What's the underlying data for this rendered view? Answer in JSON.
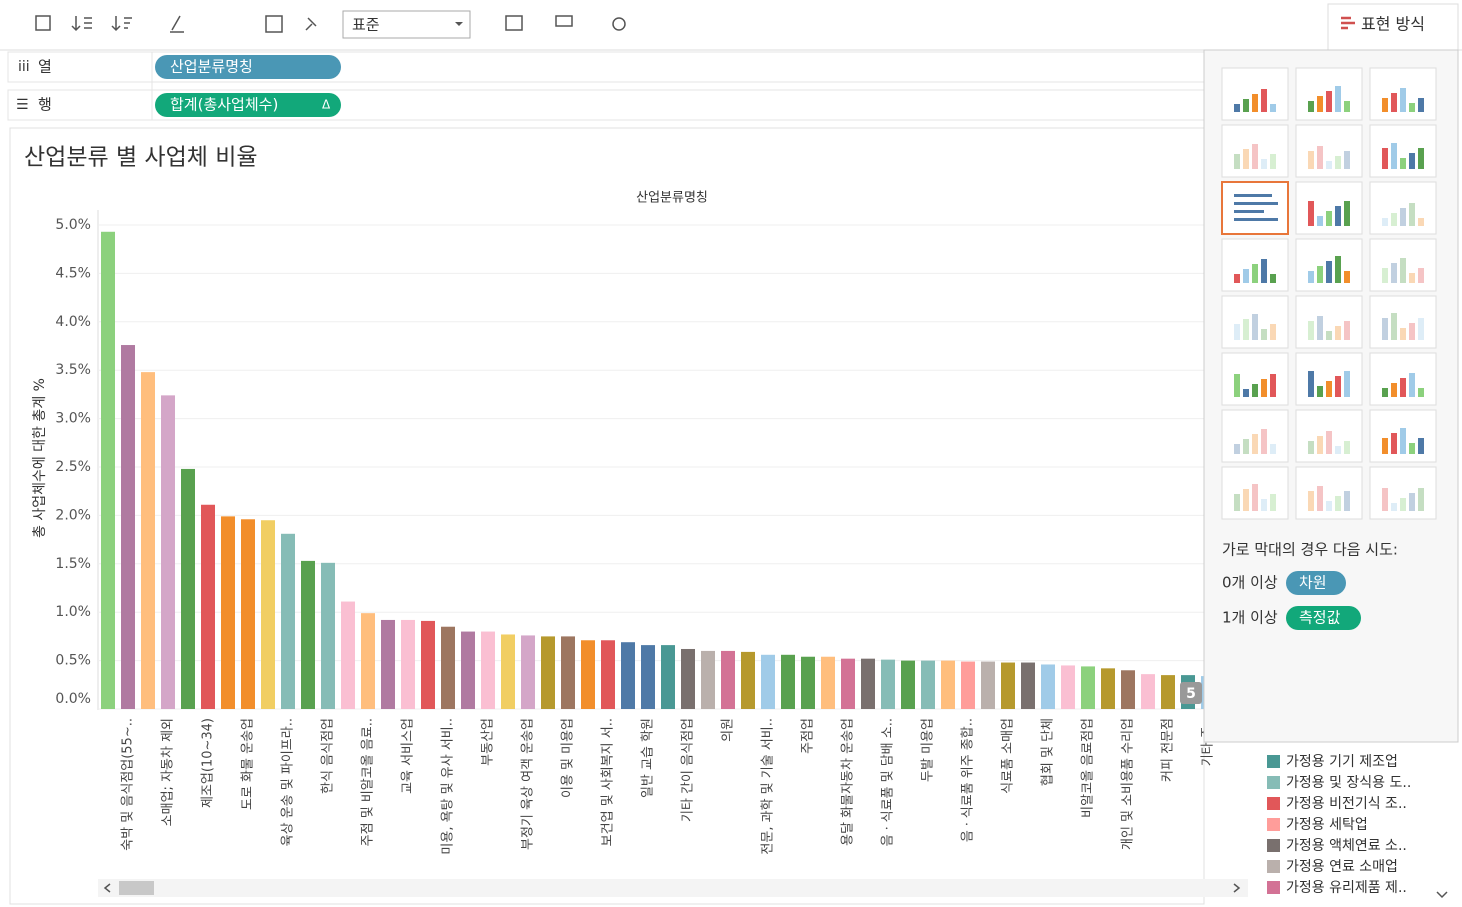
{
  "toolbar": {
    "mark_type": "표준"
  },
  "shelves": {
    "columns": {
      "label": "열",
      "pill": "산업분류명칭"
    },
    "rows": {
      "label": "행",
      "pill": "합계(총사업체수)"
    }
  },
  "chart_data": {
    "type": "bar",
    "title": "산업분류 별 사업체 비율",
    "x_header": "산업분류명칭",
    "y_label": "총 사업체수에 대한 총계 %",
    "categories": [
      null,
      "숙박 및 음식점업(55~..",
      null,
      "소매업; 자동차 제외",
      null,
      "제조업(10~34)",
      null,
      "도로 화물 운송업",
      null,
      "육상 운송 및 파이프라..",
      null,
      "한식 음식점업",
      null,
      "주점 및 비알코올 음료..",
      null,
      "교육 서비스업",
      null,
      "미용, 욕탕 및 유사 서비..",
      null,
      "부동산업",
      null,
      "부정기 육상 여객 운송업",
      null,
      "이용 및 미용업",
      null,
      "보건업 및 사회복지 서..",
      null,
      "일반 교습 학원",
      null,
      "기타 간이 음식점업",
      null,
      "의원",
      null,
      "전문, 과학 및 기술 서비..",
      null,
      "주점업",
      null,
      "용달 화물자동차 운송업",
      null,
      "음ㆍ식료품 및 담배 소..",
      null,
      "두발 미용업",
      null,
      "음ㆍ식료품 위주 종합..",
      null,
      "식료품 소매업",
      null,
      "협회 및 단체",
      null,
      "비알코올 음료점업",
      null,
      "개인 및 소비용품 수리업",
      null,
      "커피 전문점",
      null,
      "기타 주.."
    ],
    "values": [
      4.93,
      3.76,
      3.48,
      3.24,
      2.48,
      2.11,
      1.99,
      1.96,
      1.95,
      1.81,
      1.53,
      1.51,
      1.11,
      0.99,
      0.92,
      0.92,
      0.91,
      0.85,
      0.8,
      0.8,
      0.77,
      0.76,
      0.75,
      0.75,
      0.71,
      0.71,
      0.69,
      0.66,
      0.66,
      0.62,
      0.6,
      0.6,
      0.59,
      0.56,
      0.56,
      0.54,
      0.54,
      0.52,
      0.52,
      0.51,
      0.5,
      0.5,
      0.5,
      0.49,
      0.49,
      0.48,
      0.48,
      0.46,
      0.45,
      0.44,
      0.42,
      0.4,
      0.36,
      0.35,
      0.35,
      0.34
    ],
    "colors": [
      "#8cd17d",
      "#b07aa1",
      "#ffbe7d",
      "#d4a6c8",
      "#59a14f",
      "#e15759",
      "#f28e2b",
      "#f28e2b",
      "#f1ce63",
      "#86bcb6",
      "#59a14f",
      "#86bcb6",
      "#fabfd2",
      "#ffbe7d",
      "#b07aa1",
      "#fabfd2",
      "#e15759",
      "#9d7660",
      "#b07aa1",
      "#fabfd2",
      "#f1ce63",
      "#d4a6c8",
      "#b6992d",
      "#9d7660",
      "#f28e2b",
      "#e15759",
      "#4e79a7",
      "#4e79a7",
      "#499894",
      "#79706e",
      "#bab0ac",
      "#d37295",
      "#b6992d",
      "#a0cbe8",
      "#59a14f",
      "#59a14f",
      "#ffbe7d",
      "#d37295",
      "#79706e",
      "#86bcb6",
      "#59a14f",
      "#86bcb6",
      "#ffbe7d",
      "#ff9d9a",
      "#bab0ac",
      "#b6992d",
      "#79706e",
      "#a0cbe8",
      "#fabfd2",
      "#8cd17d",
      "#b6992d",
      "#9d7660",
      "#fabfd2",
      "#b6992d",
      "#499894",
      "#a0cbe8"
    ],
    "ylim": [
      0,
      5
    ],
    "yticks": [
      {
        "value": 0,
        "label": "0.0%"
      },
      {
        "value": 0.5,
        "label": "0.5%"
      },
      {
        "value": 1,
        "label": "1.0%"
      },
      {
        "value": 1.5,
        "label": "1.5%"
      },
      {
        "value": 2,
        "label": "2.0%"
      },
      {
        "value": 2.5,
        "label": "2.5%"
      },
      {
        "value": 3,
        "label": "3.0%"
      },
      {
        "value": 3.5,
        "label": "3.5%"
      },
      {
        "value": 4,
        "label": "4.0%"
      },
      {
        "value": 4.5,
        "label": "4.5%"
      },
      {
        "value": 5,
        "label": "5.0%"
      }
    ],
    "grid": true
  },
  "scroll_badge": "5",
  "show_me": {
    "title": "표현 방식",
    "hint": "가로 막대의 경우 다음 시도:",
    "requirements": [
      {
        "count": "0개 이상",
        "type": "차원",
        "color": "#4a97b5"
      },
      {
        "count": "1개 이상",
        "type": "측정값",
        "color": "#12a87a"
      }
    ]
  },
  "legend": {
    "items": [
      {
        "name": "가정용 기기 제조업",
        "color": "#499894"
      },
      {
        "name": "가정용 및 장식용 도..",
        "color": "#86bcb6"
      },
      {
        "name": "가정용 비전기식 조..",
        "color": "#e15759"
      },
      {
        "name": "가정용 세탁업",
        "color": "#ff9d9a"
      },
      {
        "name": "가정용 액체연료 소..",
        "color": "#79706e"
      },
      {
        "name": "가정용 연료 소매업",
        "color": "#bab0ac"
      },
      {
        "name": "가정용 유리제품 제..",
        "color": "#d37295"
      }
    ]
  }
}
